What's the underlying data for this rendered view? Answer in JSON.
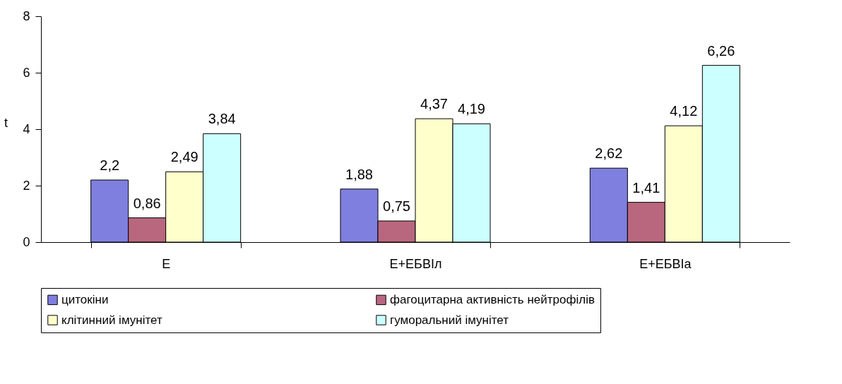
{
  "chart_data": {
    "type": "bar",
    "ylabel": "t",
    "categories": [
      "Е",
      "Е+ЕБВІл",
      "Е+ЕБВІа"
    ],
    "series": [
      {
        "name": "цитокіни",
        "color": "#7f7fdf",
        "values": [
          2.2,
          1.88,
          2.62
        ],
        "value_labels": [
          "2,2",
          "1,88",
          "2,62"
        ]
      },
      {
        "name": "фагоцитарна активність нейтрофілів",
        "color": "#b9677f",
        "values": [
          0.86,
          0.75,
          1.41
        ],
        "value_labels": [
          "0,86",
          "0,75",
          "1,41"
        ]
      },
      {
        "name": "клітинний імунітет",
        "color": "#ffffcc",
        "values": [
          2.49,
          4.37,
          4.12
        ],
        "value_labels": [
          "2,49",
          "4,37",
          "4,12"
        ]
      },
      {
        "name": "гуморальний імунітет",
        "color": "#ccffff",
        "values": [
          3.84,
          4.19,
          6.26
        ],
        "value_labels": [
          "3,84",
          "4,19",
          "6,26"
        ]
      }
    ],
    "ylim": [
      0,
      8
    ],
    "yticks": [
      0,
      2,
      4,
      6,
      8
    ],
    "grid": false,
    "legend": "bottom"
  }
}
